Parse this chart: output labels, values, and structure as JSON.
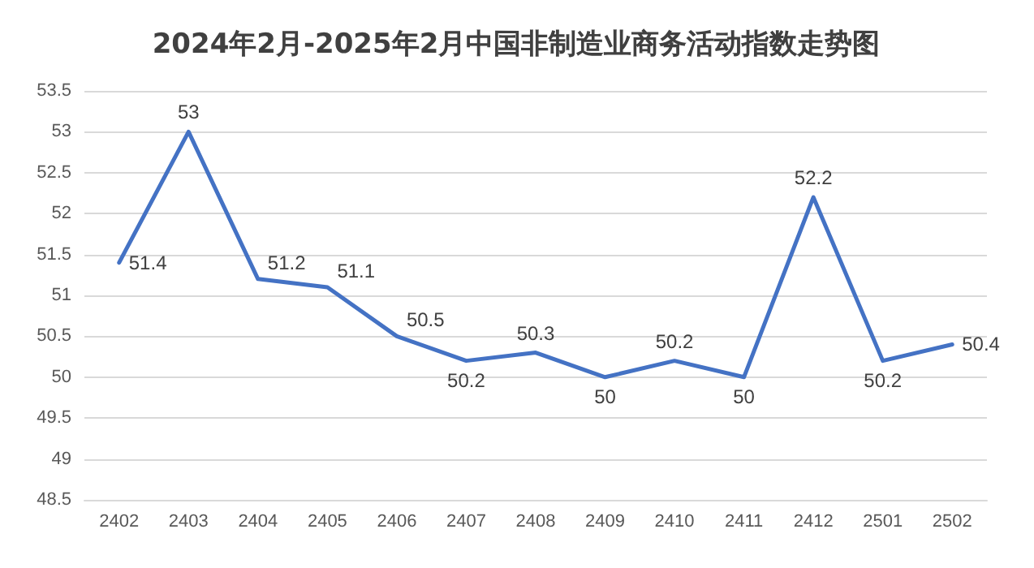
{
  "chart_data": {
    "type": "line",
    "title": "2024年2月-2025年2月中国非制造业商务活动指数走势图",
    "categories": [
      "2402",
      "2403",
      "2404",
      "2405",
      "2406",
      "2407",
      "2408",
      "2409",
      "2410",
      "2411",
      "2412",
      "2501",
      "2502"
    ],
    "series": [
      {
        "color": "#4472c4",
        "values": [
          51.4,
          53,
          51.2,
          51.1,
          50.5,
          50.2,
          50.3,
          50,
          50.2,
          50,
          52.2,
          50.2,
          50.4
        ]
      }
    ],
    "ylim": [
      48.5,
      53.5
    ],
    "yticks": [
      48.5,
      49,
      49.5,
      50,
      50.5,
      51,
      51.5,
      52,
      52.5,
      53,
      53.5
    ],
    "grid": "y",
    "data_labels": true,
    "marker": "none",
    "line_style": "solid"
  }
}
